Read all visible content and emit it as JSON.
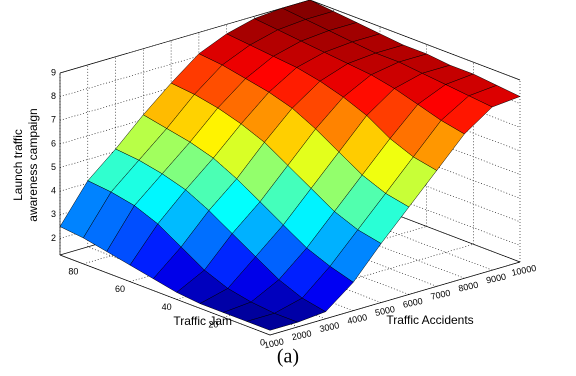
{
  "chart_data": {
    "type": "surface",
    "colormap": "jet",
    "xlabel": "Traffic Accidents",
    "ylabel": "Traffic Jam",
    "zlabel": [
      "Launch traffic",
      "awareness campaign"
    ],
    "caption": "(a)",
    "x": [
      1000,
      2000,
      3000,
      4000,
      5000,
      6000,
      7000,
      8000,
      9000,
      10000
    ],
    "y": [
      0,
      10,
      20,
      30,
      40,
      50,
      60,
      70,
      80,
      90
    ],
    "z": [
      [
        1.5,
        1.5,
        1.6,
        2.5,
        3.8,
        5.0,
        6.2,
        7.4,
        8.2,
        8.3
      ],
      [
        1.5,
        1.5,
        1.8,
        2.8,
        4.0,
        5.2,
        6.4,
        7.6,
        8.3,
        8.4
      ],
      [
        1.5,
        1.6,
        2.2,
        3.2,
        4.4,
        5.6,
        6.8,
        7.9,
        8.4,
        8.5
      ],
      [
        1.5,
        1.8,
        2.8,
        3.8,
        5.0,
        6.2,
        7.4,
        8.2,
        8.5,
        8.5
      ],
      [
        1.6,
        2.2,
        3.4,
        4.4,
        5.6,
        6.8,
        7.8,
        8.4,
        8.6,
        8.6
      ],
      [
        1.8,
        2.8,
        4.0,
        5.0,
        6.2,
        7.3,
        8.1,
        8.5,
        8.6,
        8.6
      ],
      [
        2.0,
        3.4,
        4.5,
        5.5,
        6.6,
        7.6,
        8.3,
        8.6,
        8.7,
        8.7
      ],
      [
        2.2,
        3.8,
        4.8,
        5.8,
        6.9,
        7.8,
        8.4,
        8.7,
        8.8,
        8.8
      ],
      [
        2.4,
        4.0,
        5.0,
        6.0,
        7.1,
        8.0,
        8.5,
        8.8,
        8.9,
        8.9
      ],
      [
        2.5,
        4.1,
        5.1,
        6.2,
        7.2,
        8.1,
        8.6,
        8.9,
        9.0,
        9.0
      ]
    ],
    "xlim": [
      1000,
      10000
    ],
    "ylim": [
      0,
      90
    ],
    "zlim": [
      1.3,
      9
    ],
    "xticks": [
      1000,
      2000,
      3000,
      4000,
      5000,
      6000,
      7000,
      8000,
      9000,
      10000
    ],
    "yticks": [
      0,
      20,
      40,
      60,
      80
    ],
    "zticks": [
      2,
      3,
      4,
      5,
      6,
      7,
      8,
      9
    ],
    "grid": true
  }
}
